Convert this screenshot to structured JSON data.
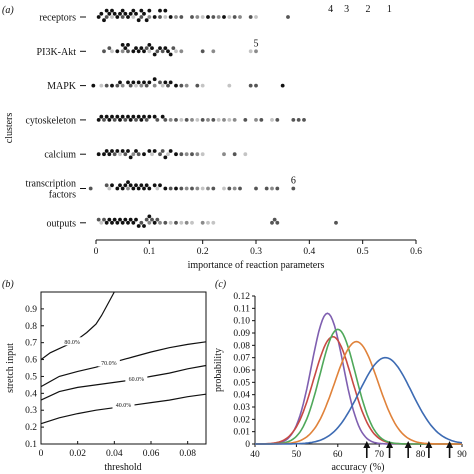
{
  "chart_data": [
    {
      "panel": "(a)",
      "type": "scatter",
      "xlabel": "importance of reaction parameters",
      "ylabel": "clusters",
      "xlim": [
        0,
        0.6
      ],
      "xticks": [
        "0",
        "0.1",
        "0.2",
        "0.3",
        "0.4",
        "0.5",
        "0.6"
      ],
      "xtick_values": [
        0,
        0.1,
        0.2,
        0.3,
        0.4,
        0.5,
        0.6
      ],
      "categories": [
        "receptors",
        "PI3K-Akt",
        "MAPK",
        "cytoskeleton",
        "calcium",
        "transcription factors",
        "outputs"
      ],
      "category_lines": [
        [
          "receptors"
        ],
        [
          "PI3K-Akt"
        ],
        [
          "MAPK"
        ],
        [
          "cytoskeleton"
        ],
        [
          "calcium"
        ],
        [
          "transcription",
          "factors"
        ],
        [
          "outputs"
        ]
      ],
      "shade_colors": {
        "black": "#111111",
        "dark": "#555555",
        "mid": "#8a8a8a",
        "light": "#c4c4c4"
      },
      "series": [
        {
          "category": "receptors",
          "black": [
            0.005,
            0.01,
            0.015,
            0.02,
            0.025,
            0.03,
            0.035,
            0.04,
            0.045,
            0.05,
            0.055,
            0.06,
            0.065,
            0.07,
            0.075,
            0.08,
            0.085,
            0.09,
            0.095,
            0.1,
            0.11,
            0.12,
            0.13,
            0.14,
            0.21,
            0.24
          ],
          "dark": [
            0.02,
            0.05,
            0.085,
            0.12,
            0.16,
            0.18,
            0.22,
            0.26,
            0.29,
            0.36
          ],
          "mid": [
            0.1,
            0.15,
            0.19,
            0.23,
            0.27
          ],
          "light": [
            0.03,
            0.07,
            0.13,
            0.2,
            0.25,
            0.3
          ]
        },
        {
          "category": "PI3K-Akt",
          "black": [
            0.04,
            0.05,
            0.055,
            0.06,
            0.07,
            0.075,
            0.08,
            0.085,
            0.09,
            0.1,
            0.105,
            0.11,
            0.12,
            0.13,
            0.135,
            0.14
          ],
          "dark": [
            0.015,
            0.025,
            0.06,
            0.095,
            0.115,
            0.125,
            0.145,
            0.2
          ],
          "mid": [
            0.05,
            0.16,
            0.22,
            0.3
          ],
          "light": [
            0.03,
            0.1,
            0.15,
            0.29
          ]
        },
        {
          "category": "MAPK",
          "black": [
            -0.005,
            0.03,
            0.045,
            0.06,
            0.07,
            0.08,
            0.09,
            0.1,
            0.11,
            0.13,
            0.14,
            0.15,
            0.35
          ],
          "dark": [
            0.02,
            0.04,
            0.065,
            0.095,
            0.12,
            0.135,
            0.16,
            0.19,
            0.29,
            0.3
          ],
          "mid": [
            0.05,
            0.085,
            0.11,
            0.17
          ],
          "light": [
            0.01,
            0.075,
            0.125,
            0.2,
            0.25
          ]
        },
        {
          "category": "cytoskeleton",
          "black": [
            0.005,
            0.01,
            0.02,
            0.025,
            0.03,
            0.04,
            0.045,
            0.05,
            0.06,
            0.065,
            0.07,
            0.08,
            0.085,
            0.09,
            0.1,
            0.11,
            0.125
          ],
          "dark": [
            0.015,
            0.035,
            0.055,
            0.075,
            0.095,
            0.115,
            0.13,
            0.15,
            0.17,
            0.2,
            0.22,
            0.28,
            0.31,
            0.34,
            0.37,
            0.38,
            0.39
          ],
          "mid": [
            0.14,
            0.18,
            0.21,
            0.24,
            0.26,
            0.3
          ],
          "light": [
            0.16,
            0.19,
            0.23,
            0.25,
            0.33
          ]
        },
        {
          "category": "calcium",
          "black": [
            0.005,
            0.015,
            0.02,
            0.025,
            0.03,
            0.04,
            0.05,
            0.06,
            0.065,
            0.075,
            0.09,
            0.1,
            0.11,
            0.13,
            0.14,
            0.15
          ],
          "dark": [
            0.035,
            0.055,
            0.08,
            0.12,
            0.125,
            0.16,
            0.18,
            0.26
          ],
          "mid": [
            0.07,
            0.17,
            0.19,
            0.24
          ],
          "light": [
            0.045,
            0.105,
            0.135,
            0.2,
            0.28
          ]
        },
        {
          "category": "transcription factors",
          "black": [
            0.03,
            0.04,
            0.045,
            0.05,
            0.055,
            0.06,
            0.065,
            0.07,
            0.075,
            0.08,
            0.085,
            0.09,
            0.095,
            0.1,
            0.11,
            0.12,
            0.13,
            0.15
          ],
          "dark": [
            -0.01,
            0.02,
            0.14,
            0.16,
            0.18,
            0.22,
            0.25,
            0.27,
            0.3,
            0.32,
            0.34,
            0.37
          ],
          "mid": [
            0.06,
            0.17,
            0.19,
            0.21,
            0.26,
            0.33
          ],
          "light": [
            0.025,
            0.115,
            0.2,
            0.24
          ]
        },
        {
          "category": "outputs",
          "black": [
            0.02,
            0.025,
            0.03,
            0.035,
            0.04,
            0.045,
            0.05,
            0.055,
            0.06,
            0.065,
            0.07,
            0.075,
            0.08,
            0.09,
            0.1,
            0.11
          ],
          "dark": [
            0.005,
            0.015,
            0.085,
            0.095,
            0.105,
            0.115,
            0.13,
            0.15,
            0.33,
            0.335,
            0.34,
            0.45
          ],
          "mid": [
            0.1,
            0.12,
            0.17,
            0.2
          ],
          "light": [
            0.01,
            0.14,
            0.16,
            0.18,
            0.21,
            0.22
          ]
        }
      ],
      "annotations": [
        {
          "text": "1",
          "x": 0.55,
          "category": "receptors"
        },
        {
          "text": "2",
          "x": 0.51,
          "category": "receptors"
        },
        {
          "text": "3",
          "x": 0.47,
          "category": "receptors"
        },
        {
          "text": "4",
          "x": 0.44,
          "category": "receptors"
        },
        {
          "text": "5",
          "x": 0.3,
          "category": "PI3K-Akt"
        },
        {
          "text": "6",
          "x": 0.37,
          "category": "transcription factors"
        }
      ]
    },
    {
      "panel": "(b)",
      "type": "line",
      "xlabel": "threshold",
      "ylabel": "stretch input",
      "xlim": [
        0,
        0.09
      ],
      "ylim": [
        0.1,
        1.0
      ],
      "xticks": [
        "0",
        "0.02",
        "0.04",
        "0.06",
        "0.08"
      ],
      "xtick_values": [
        0,
        0.02,
        0.04,
        0.06,
        0.08
      ],
      "yticks": [
        "0.1",
        "0.2",
        "0.3",
        "0.4",
        "0.5",
        "0.6",
        "0.7",
        "0.8",
        "0.9"
      ],
      "ytick_values": [
        0.1,
        0.2,
        0.3,
        0.4,
        0.5,
        0.6,
        0.7,
        0.8,
        0.9
      ],
      "series": [
        {
          "name": "40.0%",
          "label_x": 0.045,
          "label_y": 0.33,
          "x": [
            0,
            0.01,
            0.02,
            0.03,
            0.04,
            0.05,
            0.06,
            0.07,
            0.08,
            0.09
          ],
          "y": [
            0.22,
            0.255,
            0.28,
            0.3,
            0.315,
            0.33,
            0.345,
            0.36,
            0.38,
            0.395
          ]
        },
        {
          "name": "60.0%",
          "label_x": 0.052,
          "label_y": 0.485,
          "x": [
            0,
            0.01,
            0.02,
            0.03,
            0.04,
            0.05,
            0.06,
            0.07,
            0.08,
            0.09
          ],
          "y": [
            0.36,
            0.41,
            0.435,
            0.45,
            0.465,
            0.48,
            0.5,
            0.52,
            0.545,
            0.565
          ]
        },
        {
          "name": "70.0%",
          "label_x": 0.037,
          "label_y": 0.58,
          "x": [
            0,
            0.01,
            0.02,
            0.03,
            0.04,
            0.05,
            0.06,
            0.07,
            0.08,
            0.09
          ],
          "y": [
            0.44,
            0.5,
            0.53,
            0.555,
            0.585,
            0.615,
            0.645,
            0.67,
            0.69,
            0.705
          ]
        },
        {
          "name": "80.0%",
          "label_x": 0.017,
          "label_y": 0.705,
          "x": [
            0,
            0.005,
            0.01,
            0.015,
            0.02,
            0.025,
            0.03,
            0.033,
            0.036,
            0.04
          ],
          "y": [
            0.6,
            0.64,
            0.665,
            0.69,
            0.72,
            0.76,
            0.81,
            0.86,
            0.92,
            1.0
          ]
        }
      ]
    },
    {
      "panel": "(c)",
      "type": "line",
      "xlabel": "accuracy (%)",
      "ylabel": "probability",
      "xlim": [
        40,
        90
      ],
      "ylim": [
        0,
        0.12
      ],
      "xticks": [
        "40",
        "50",
        "60",
        "70",
        "80",
        "90"
      ],
      "xtick_values": [
        40,
        50,
        60,
        70,
        80,
        90
      ],
      "yticks": [
        "0",
        "0.01",
        "0.02",
        "0.03",
        "0.04",
        "0.05",
        "0.06",
        "0.07",
        "0.08",
        "0.09",
        "0.10",
        "0.11",
        "0.12"
      ],
      "ytick_values": [
        0,
        0.01,
        0.02,
        0.03,
        0.04,
        0.05,
        0.06,
        0.07,
        0.08,
        0.09,
        0.1,
        0.11,
        0.12
      ],
      "series": [
        {
          "color": "#7f5fb0",
          "mean": 57.5,
          "sd": 3.8,
          "peak": 0.106
        },
        {
          "color": "#c84a44",
          "mean": 58.8,
          "sd": 4.6,
          "peak": 0.087
        },
        {
          "color": "#4fa85a",
          "mean": 60.0,
          "sd": 4.3,
          "peak": 0.093
        },
        {
          "color": "#e0823a",
          "mean": 64.5,
          "sd": 5.2,
          "peak": 0.083
        },
        {
          "color": "#3d6bb3",
          "mean": 71.5,
          "sd": 6.3,
          "peak": 0.07
        }
      ],
      "arrows_at": [
        67,
        72.5,
        77,
        82,
        87
      ]
    }
  ]
}
